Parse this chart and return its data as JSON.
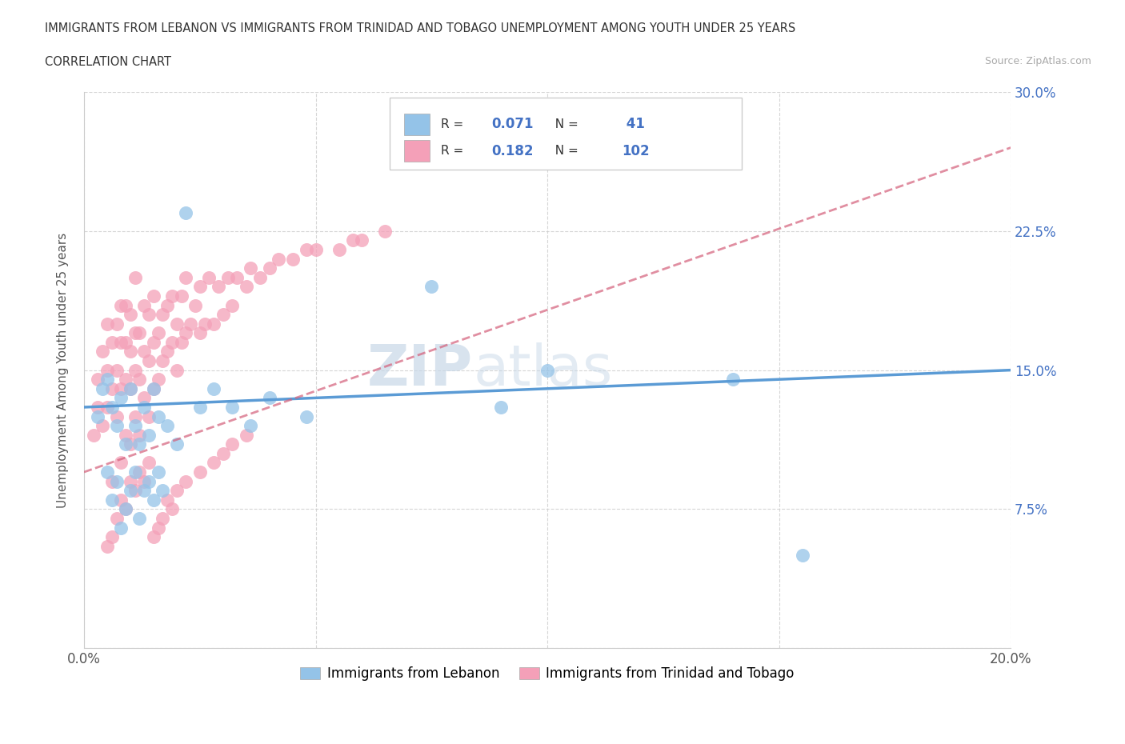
{
  "title_line1": "IMMIGRANTS FROM LEBANON VS IMMIGRANTS FROM TRINIDAD AND TOBAGO UNEMPLOYMENT AMONG YOUTH UNDER 25 YEARS",
  "title_line2": "CORRELATION CHART",
  "source_text": "Source: ZipAtlas.com",
  "ylabel": "Unemployment Among Youth under 25 years",
  "legend_label_1": "Immigrants from Lebanon",
  "legend_label_2": "Immigrants from Trinidad and Tobago",
  "R1": 0.071,
  "N1": 41,
  "R2": 0.182,
  "N2": 102,
  "color_lebanon": "#94c3e8",
  "color_tt": "#f4a0b8",
  "line_color_lebanon": "#5b9bd5",
  "line_color_tt": "#d45f7a",
  "xlim": [
    0.0,
    0.2
  ],
  "ylim": [
    0.0,
    0.3
  ],
  "watermark": "ZIPatlas",
  "lebanon_x": [
    0.003,
    0.004,
    0.005,
    0.005,
    0.006,
    0.006,
    0.007,
    0.007,
    0.008,
    0.008,
    0.009,
    0.009,
    0.01,
    0.01,
    0.011,
    0.011,
    0.012,
    0.012,
    0.013,
    0.013,
    0.014,
    0.014,
    0.015,
    0.015,
    0.016,
    0.016,
    0.017,
    0.018,
    0.02,
    0.022,
    0.025,
    0.028,
    0.032,
    0.036,
    0.04,
    0.048,
    0.075,
    0.09,
    0.1,
    0.14,
    0.155
  ],
  "lebanon_y": [
    0.125,
    0.14,
    0.095,
    0.145,
    0.08,
    0.13,
    0.09,
    0.12,
    0.065,
    0.135,
    0.075,
    0.11,
    0.085,
    0.14,
    0.095,
    0.12,
    0.07,
    0.11,
    0.085,
    0.13,
    0.09,
    0.115,
    0.08,
    0.14,
    0.095,
    0.125,
    0.085,
    0.12,
    0.11,
    0.235,
    0.13,
    0.14,
    0.13,
    0.12,
    0.135,
    0.125,
    0.195,
    0.13,
    0.15,
    0.145,
    0.05
  ],
  "tt_x": [
    0.002,
    0.003,
    0.003,
    0.004,
    0.004,
    0.005,
    0.005,
    0.005,
    0.006,
    0.006,
    0.006,
    0.007,
    0.007,
    0.007,
    0.008,
    0.008,
    0.008,
    0.008,
    0.009,
    0.009,
    0.009,
    0.009,
    0.01,
    0.01,
    0.01,
    0.01,
    0.011,
    0.011,
    0.011,
    0.011,
    0.012,
    0.012,
    0.012,
    0.013,
    0.013,
    0.013,
    0.014,
    0.014,
    0.014,
    0.015,
    0.015,
    0.015,
    0.016,
    0.016,
    0.017,
    0.017,
    0.018,
    0.018,
    0.019,
    0.019,
    0.02,
    0.02,
    0.021,
    0.021,
    0.022,
    0.022,
    0.023,
    0.024,
    0.025,
    0.025,
    0.026,
    0.027,
    0.028,
    0.029,
    0.03,
    0.031,
    0.032,
    0.033,
    0.035,
    0.036,
    0.038,
    0.04,
    0.042,
    0.045,
    0.048,
    0.05,
    0.055,
    0.058,
    0.06,
    0.065,
    0.005,
    0.006,
    0.007,
    0.008,
    0.009,
    0.01,
    0.011,
    0.012,
    0.013,
    0.014,
    0.015,
    0.016,
    0.017,
    0.018,
    0.019,
    0.02,
    0.022,
    0.025,
    0.028,
    0.03,
    0.032,
    0.035
  ],
  "tt_y": [
    0.115,
    0.145,
    0.13,
    0.16,
    0.12,
    0.15,
    0.13,
    0.175,
    0.09,
    0.14,
    0.165,
    0.125,
    0.15,
    0.175,
    0.1,
    0.14,
    0.165,
    0.185,
    0.115,
    0.145,
    0.165,
    0.185,
    0.11,
    0.14,
    0.16,
    0.18,
    0.125,
    0.15,
    0.17,
    0.2,
    0.115,
    0.145,
    0.17,
    0.135,
    0.16,
    0.185,
    0.125,
    0.155,
    0.18,
    0.14,
    0.165,
    0.19,
    0.145,
    0.17,
    0.155,
    0.18,
    0.16,
    0.185,
    0.165,
    0.19,
    0.15,
    0.175,
    0.165,
    0.19,
    0.17,
    0.2,
    0.175,
    0.185,
    0.17,
    0.195,
    0.175,
    0.2,
    0.175,
    0.195,
    0.18,
    0.2,
    0.185,
    0.2,
    0.195,
    0.205,
    0.2,
    0.205,
    0.21,
    0.21,
    0.215,
    0.215,
    0.215,
    0.22,
    0.22,
    0.225,
    0.055,
    0.06,
    0.07,
    0.08,
    0.075,
    0.09,
    0.085,
    0.095,
    0.09,
    0.1,
    0.06,
    0.065,
    0.07,
    0.08,
    0.075,
    0.085,
    0.09,
    0.095,
    0.1,
    0.105,
    0.11,
    0.115
  ],
  "trend_lb_x0": 0.0,
  "trend_lb_x1": 0.2,
  "trend_lb_y0": 0.13,
  "trend_lb_y1": 0.15,
  "trend_tt_x0": 0.0,
  "trend_tt_x1": 0.2,
  "trend_tt_y0": 0.095,
  "trend_tt_y1": 0.27
}
